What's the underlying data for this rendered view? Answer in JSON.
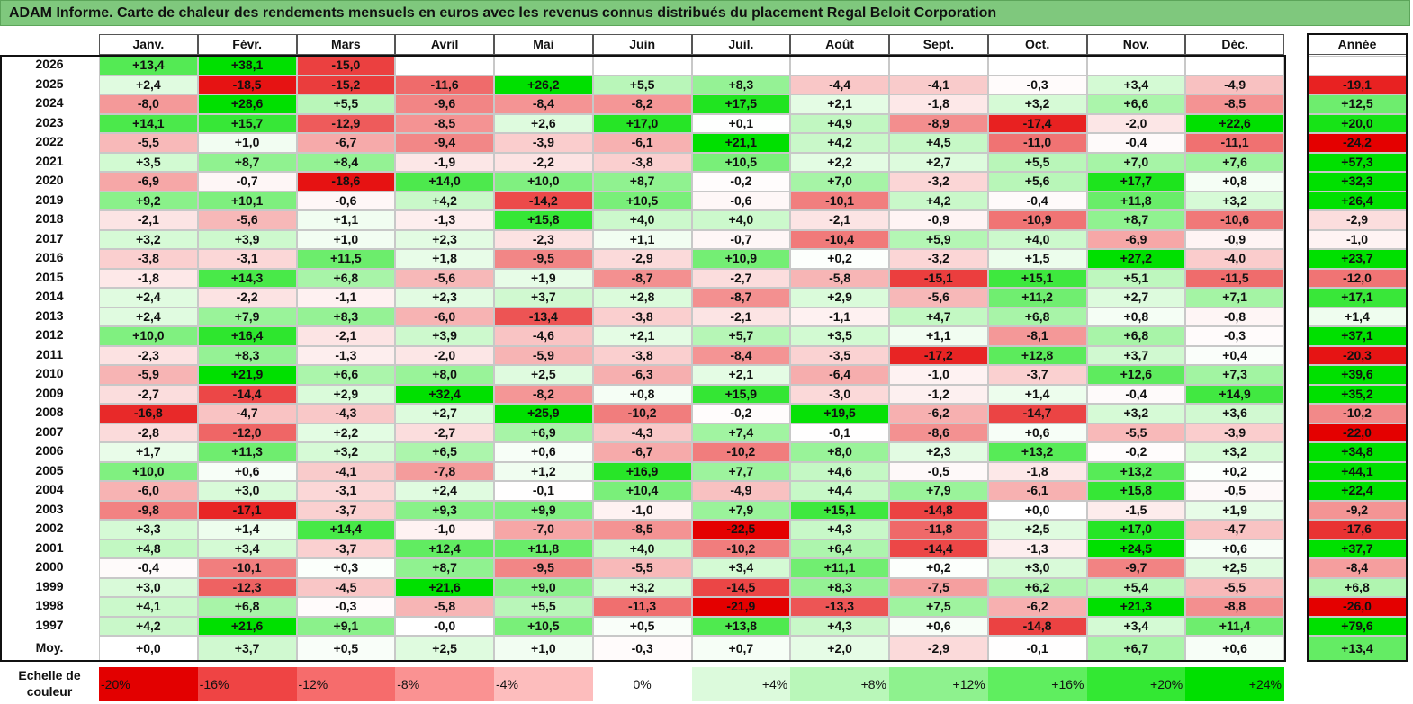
{
  "title": "ADAM Informe. Carte de chaleur des rendements mensuels en euros avec les revenus connus distribués du placement Regal Beloit Corporation",
  "chart_data": {
    "type": "heatmap",
    "months": [
      "Janv.",
      "Févr.",
      "Mars",
      "Avril",
      "Mai",
      "Juin",
      "Juil.",
      "Août",
      "Sept.",
      "Oct.",
      "Nov.",
      "Déc."
    ],
    "year_header": "Année",
    "rows": [
      {
        "year": "2026",
        "values": [
          "+13,4",
          "+38,1",
          "-15,0",
          "",
          "",
          "",
          "",
          "",
          "",
          "",
          "",
          ""
        ],
        "annual": ""
      },
      {
        "year": "2025",
        "values": [
          "+2,4",
          "-18,5",
          "-15,2",
          "-11,6",
          "+26,2",
          "+5,5",
          "+8,3",
          "-4,4",
          "-4,1",
          "-0,3",
          "+3,4",
          "-4,9"
        ],
        "annual": "-19,1"
      },
      {
        "year": "2024",
        "values": [
          "-8,0",
          "+28,6",
          "+5,5",
          "-9,6",
          "-8,4",
          "-8,2",
          "+17,5",
          "+2,1",
          "-1,8",
          "+3,2",
          "+6,6",
          "-8,5"
        ],
        "annual": "+12,5"
      },
      {
        "year": "2023",
        "values": [
          "+14,1",
          "+15,7",
          "-12,9",
          "-8,5",
          "+2,6",
          "+17,0",
          "+0,1",
          "+4,9",
          "-8,9",
          "-17,4",
          "-2,0",
          "+22,6"
        ],
        "annual": "+20,0"
      },
      {
        "year": "2022",
        "values": [
          "-5,5",
          "+1,0",
          "-6,7",
          "-9,4",
          "-3,9",
          "-6,1",
          "+21,1",
          "+4,2",
          "+4,5",
          "-11,0",
          "-0,4",
          "-11,1"
        ],
        "annual": "-24,2"
      },
      {
        "year": "2021",
        "values": [
          "+3,5",
          "+8,7",
          "+8,4",
          "-1,9",
          "-2,2",
          "-3,8",
          "+10,5",
          "+2,2",
          "+2,7",
          "+5,5",
          "+7,0",
          "+7,6"
        ],
        "annual": "+57,3"
      },
      {
        "year": "2020",
        "values": [
          "-6,9",
          "-0,7",
          "-18,6",
          "+14,0",
          "+10,0",
          "+8,7",
          "-0,2",
          "+7,0",
          "-3,2",
          "+5,6",
          "+17,7",
          "+0,8"
        ],
        "annual": "+32,3"
      },
      {
        "year": "2019",
        "values": [
          "+9,2",
          "+10,1",
          "-0,6",
          "+4,2",
          "-14,2",
          "+10,5",
          "-0,6",
          "-10,1",
          "+4,2",
          "-0,4",
          "+11,8",
          "+3,2"
        ],
        "annual": "+26,4"
      },
      {
        "year": "2018",
        "values": [
          "-2,1",
          "-5,6",
          "+1,1",
          "-1,3",
          "+15,8",
          "+4,0",
          "+4,0",
          "-2,1",
          "-0,9",
          "-10,9",
          "+8,7",
          "-10,6"
        ],
        "annual": "-2,9"
      },
      {
        "year": "2017",
        "values": [
          "+3,2",
          "+3,9",
          "+1,0",
          "+2,3",
          "-2,3",
          "+1,1",
          "-0,7",
          "-10,4",
          "+5,9",
          "+4,0",
          "-6,9",
          "-0,9"
        ],
        "annual": "-1,0"
      },
      {
        "year": "2016",
        "values": [
          "-3,8",
          "-3,1",
          "+11,5",
          "+1,8",
          "-9,5",
          "-2,9",
          "+10,9",
          "+0,2",
          "-3,2",
          "+1,5",
          "+27,2",
          "-4,0"
        ],
        "annual": "+23,7"
      },
      {
        "year": "2015",
        "values": [
          "-1,8",
          "+14,3",
          "+6,8",
          "-5,6",
          "+1,9",
          "-8,7",
          "-2,7",
          "-5,8",
          "-15,1",
          "+15,1",
          "+5,1",
          "-11,5"
        ],
        "annual": "-12,0"
      },
      {
        "year": "2014",
        "values": [
          "+2,4",
          "-2,2",
          "-1,1",
          "+2,3",
          "+3,7",
          "+2,8",
          "-8,7",
          "+2,9",
          "-5,6",
          "+11,2",
          "+2,7",
          "+7,1"
        ],
        "annual": "+17,1"
      },
      {
        "year": "2013",
        "values": [
          "+2,4",
          "+7,9",
          "+8,3",
          "-6,0",
          "-13,4",
          "-3,8",
          "-2,1",
          "-1,1",
          "+4,7",
          "+6,8",
          "+0,8",
          "-0,8"
        ],
        "annual": "+1,4"
      },
      {
        "year": "2012",
        "values": [
          "+10,0",
          "+16,4",
          "-2,1",
          "+3,9",
          "-4,6",
          "+2,1",
          "+5,7",
          "+3,5",
          "+1,1",
          "-8,1",
          "+6,8",
          "-0,3"
        ],
        "annual": "+37,1"
      },
      {
        "year": "2011",
        "values": [
          "-2,3",
          "+8,3",
          "-1,3",
          "-2,0",
          "-5,9",
          "-3,8",
          "-8,4",
          "-3,5",
          "-17,2",
          "+12,8",
          "+3,7",
          "+0,4"
        ],
        "annual": "-20,3"
      },
      {
        "year": "2010",
        "values": [
          "-5,9",
          "+21,9",
          "+6,6",
          "+8,0",
          "+2,5",
          "-6,3",
          "+2,1",
          "-6,4",
          "-1,0",
          "-3,7",
          "+12,6",
          "+7,3"
        ],
        "annual": "+39,6"
      },
      {
        "year": "2009",
        "values": [
          "-2,7",
          "-14,4",
          "+2,9",
          "+32,4",
          "-8,2",
          "+0,8",
          "+15,9",
          "-3,0",
          "-1,2",
          "+1,4",
          "-0,4",
          "+14,9"
        ],
        "annual": "+35,2"
      },
      {
        "year": "2008",
        "values": [
          "-16,8",
          "-4,7",
          "-4,3",
          "+2,7",
          "+25,9",
          "-10,2",
          "-0,2",
          "+19,5",
          "-6,2",
          "-14,7",
          "+3,2",
          "+3,6"
        ],
        "annual": "-10,2"
      },
      {
        "year": "2007",
        "values": [
          "-2,8",
          "-12,0",
          "+2,2",
          "-2,7",
          "+6,9",
          "-4,3",
          "+7,4",
          "-0,1",
          "-8,6",
          "+0,6",
          "-5,5",
          "-3,9"
        ],
        "annual": "-22,0"
      },
      {
        "year": "2006",
        "values": [
          "+1,7",
          "+11,3",
          "+3,2",
          "+6,5",
          "+0,6",
          "-6,7",
          "-10,2",
          "+8,0",
          "+2,3",
          "+13,2",
          "-0,2",
          "+3,2"
        ],
        "annual": "+34,8"
      },
      {
        "year": "2005",
        "values": [
          "+10,0",
          "+0,6",
          "-4,1",
          "-7,8",
          "+1,2",
          "+16,9",
          "+7,7",
          "+4,6",
          "-0,5",
          "-1,8",
          "+13,2",
          "+0,2"
        ],
        "annual": "+44,1"
      },
      {
        "year": "2004",
        "values": [
          "-6,0",
          "+3,0",
          "-3,1",
          "+2,4",
          "-0,1",
          "+10,4",
          "-4,9",
          "+4,4",
          "+7,9",
          "-6,1",
          "+15,8",
          "-0,5"
        ],
        "annual": "+22,4"
      },
      {
        "year": "2003",
        "values": [
          "-9,8",
          "-17,1",
          "-3,7",
          "+9,3",
          "+9,9",
          "-1,0",
          "+7,9",
          "+15,1",
          "-14,8",
          "+0,0",
          "-1,5",
          "+1,9"
        ],
        "annual": "-9,2"
      },
      {
        "year": "2002",
        "values": [
          "+3,3",
          "+1,4",
          "+14,4",
          "-1,0",
          "-7,0",
          "-8,5",
          "-22,5",
          "+4,3",
          "-11,8",
          "+2,5",
          "+17,0",
          "-4,7"
        ],
        "annual": "-17,6"
      },
      {
        "year": "2001",
        "values": [
          "+4,8",
          "+3,4",
          "-3,7",
          "+12,4",
          "+11,8",
          "+4,0",
          "-10,2",
          "+6,4",
          "-14,4",
          "-1,3",
          "+24,5",
          "+0,6"
        ],
        "annual": "+37,7"
      },
      {
        "year": "2000",
        "values": [
          "-0,4",
          "-10,1",
          "+0,3",
          "+8,7",
          "-9,5",
          "-5,5",
          "+3,4",
          "+11,1",
          "+0,2",
          "+3,0",
          "-9,7",
          "+2,5"
        ],
        "annual": "-8,4"
      },
      {
        "year": "1999",
        "values": [
          "+3,0",
          "-12,3",
          "-4,5",
          "+21,6",
          "+9,0",
          "+3,2",
          "-14,5",
          "+8,3",
          "-7,5",
          "+6,2",
          "+5,4",
          "-5,5"
        ],
        "annual": "+6,8"
      },
      {
        "year": "1998",
        "values": [
          "+4,1",
          "+6,8",
          "-0,3",
          "-5,8",
          "+5,5",
          "-11,3",
          "-21,9",
          "-13,3",
          "+7,5",
          "-6,2",
          "+21,3",
          "-8,8"
        ],
        "annual": "-26,0"
      },
      {
        "year": "1997",
        "values": [
          "+4,2",
          "+21,6",
          "+9,1",
          "-0,0",
          "+10,5",
          "+0,5",
          "+13,8",
          "+4,3",
          "+0,6",
          "-14,8",
          "+3,4",
          "+11,4"
        ],
        "annual": "+79,6"
      }
    ],
    "average": {
      "label": "Moy.",
      "values": [
        "+0,0",
        "+3,7",
        "+0,5",
        "+2,5",
        "+1,0",
        "-0,3",
        "+0,7",
        "+2,0",
        "-2,9",
        "-0,1",
        "+6,7",
        "+0,6"
      ],
      "annual": "+13,4"
    },
    "scale": {
      "label_line1": "Echelle de",
      "label_line2": "couleur",
      "steps": [
        "-20%",
        "-16%",
        "-12%",
        "-8%",
        "-4%",
        "0%",
        "+4%",
        "+8%",
        "+12%",
        "+16%",
        "+20%",
        "+24%"
      ],
      "colors": [
        "#e30000",
        "#ef4444",
        "#f66c6c",
        "#fa9292",
        "#fdbdbd",
        "#ffffff",
        "#dcfadc",
        "#b9f7b9",
        "#8ef28e",
        "#5fee5f",
        "#33e833",
        "#00e000"
      ]
    },
    "colors": {
      "negative": "#e00000",
      "neutral": "#ffffff",
      "positive": "#00e000",
      "title_bar": "#7fc87d"
    }
  }
}
